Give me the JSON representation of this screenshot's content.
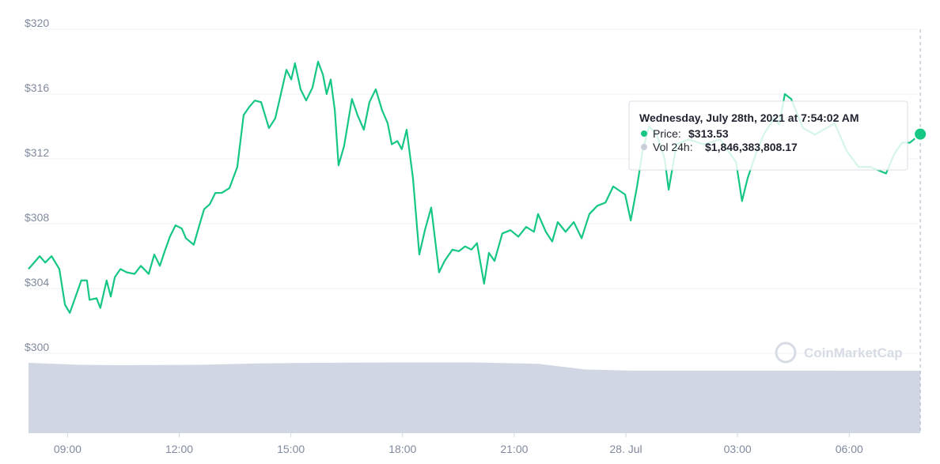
{
  "chart_data": {
    "type": "line",
    "xlim": [
      7.95,
      31.95
    ],
    "xticks": [
      {
        "value": 9,
        "label": "09:00"
      },
      {
        "value": 12,
        "label": "12:00"
      },
      {
        "value": 15,
        "label": "15:00"
      },
      {
        "value": 18,
        "label": "18:00"
      },
      {
        "value": 21,
        "label": "21:00"
      },
      {
        "value": 24,
        "label": "28. Jul"
      },
      {
        "value": 27,
        "label": "03:00"
      },
      {
        "value": 30,
        "label": "06:00"
      }
    ],
    "ylim": [
      300,
      320
    ],
    "yticks": [
      {
        "value": 300,
        "label": "$300"
      },
      {
        "value": 304,
        "label": "$304"
      },
      {
        "value": 308,
        "label": "$308"
      },
      {
        "value": 312,
        "label": "$312"
      },
      {
        "value": 316,
        "label": "$316"
      },
      {
        "value": 320,
        "label": "$320"
      }
    ],
    "y2lim": [
      0,
      2360000000
    ],
    "grid": true,
    "series": [
      {
        "color": "#16c784",
        "x": [
          7.95,
          8.14,
          8.25,
          8.4,
          8.57,
          8.78,
          8.93,
          9.06,
          9.2,
          9.37,
          9.52,
          9.59,
          9.78,
          9.88,
          10.05,
          10.16,
          10.27,
          10.42,
          10.59,
          10.8,
          10.97,
          11.18,
          11.33,
          11.48,
          11.61,
          11.75,
          11.9,
          12.07,
          12.18,
          12.39,
          12.54,
          12.67,
          12.82,
          12.97,
          13.14,
          13.35,
          13.56,
          13.73,
          13.88,
          14.03,
          14.2,
          14.41,
          14.58,
          14.73,
          14.88,
          15.01,
          15.11,
          15.26,
          15.41,
          15.58,
          15.73,
          15.86,
          15.96,
          16.07,
          16.18,
          16.28,
          16.43,
          16.64,
          16.79,
          16.96,
          17.11,
          17.28,
          17.45,
          17.6,
          17.71,
          17.86,
          17.98,
          18.11,
          18.28,
          18.45,
          18.6,
          18.77,
          18.98,
          19.13,
          19.34,
          19.51,
          19.68,
          19.85,
          20.0,
          20.19,
          20.32,
          20.47,
          20.68,
          20.9,
          21.11,
          21.32,
          21.53,
          21.64,
          21.85,
          22.02,
          22.17,
          22.38,
          22.6,
          22.81,
          23.02,
          23.23,
          23.45,
          23.66,
          23.98,
          24.13,
          24.3,
          24.45,
          24.62,
          24.83,
          25.04,
          25.15,
          25.36,
          25.68,
          26.1,
          26.53,
          26.96,
          27.12,
          27.27,
          27.49,
          27.7,
          27.98,
          28.12,
          28.27,
          28.44,
          28.76,
          29.08,
          29.61,
          29.93,
          30.25,
          30.57,
          30.78,
          30.99,
          31.21,
          31.42,
          31.63,
          31.91
        ],
        "values": [
          305.2,
          305.7,
          306.0,
          305.6,
          306.0,
          305.2,
          303.0,
          302.5,
          303.4,
          304.5,
          304.5,
          303.3,
          303.4,
          302.8,
          304.5,
          303.5,
          304.7,
          305.2,
          305.0,
          304.9,
          305.4,
          304.9,
          306.1,
          305.4,
          306.3,
          307.2,
          307.9,
          307.7,
          307.1,
          306.7,
          307.9,
          308.9,
          309.2,
          309.9,
          309.9,
          310.2,
          311.5,
          314.7,
          315.2,
          315.6,
          315.5,
          313.9,
          314.5,
          316.0,
          317.5,
          316.9,
          317.9,
          316.3,
          315.6,
          316.4,
          318.0,
          317.2,
          316.0,
          316.9,
          315.0,
          311.6,
          312.8,
          315.7,
          314.7,
          313.8,
          315.5,
          316.3,
          315.0,
          314.2,
          312.9,
          313.1,
          312.6,
          313.8,
          310.8,
          306.1,
          307.6,
          309.0,
          305.0,
          305.7,
          306.4,
          306.3,
          306.6,
          306.4,
          306.8,
          304.3,
          306.2,
          305.7,
          307.4,
          307.6,
          307.2,
          307.8,
          307.5,
          308.6,
          307.5,
          306.9,
          308.1,
          307.5,
          308.1,
          307.1,
          308.6,
          309.1,
          309.3,
          310.3,
          309.8,
          308.2,
          310.3,
          312.5,
          314.0,
          313.5,
          312.0,
          310.1,
          312.9,
          313.2,
          312.9,
          313.2,
          311.8,
          309.4,
          310.8,
          312.3,
          313.5,
          314.5,
          314.1,
          316.0,
          315.7,
          313.9,
          313.5,
          314.2,
          312.5,
          311.5,
          311.5,
          311.3,
          311.1,
          312.3,
          313.0,
          313.0,
          313.53
        ]
      },
      {
        "color": "#d1d6e4",
        "axis": "y2",
        "x": [
          7.95,
          9.31,
          10.37,
          12.5,
          13.99,
          15.69,
          17.81,
          19.94,
          21.64,
          22.92,
          24.19,
          28.44,
          31.91
        ],
        "values": [
          2080000000,
          2020000000,
          2010000000,
          2020000000,
          2060000000,
          2080000000,
          2090000000,
          2090000000,
          2050000000,
          1880000000,
          1850000000,
          1850000000,
          1846383808.17
        ]
      }
    ],
    "tooltip": {
      "date": "Wednesday, July 28th, 2021 at 7:54:02 AM",
      "price_label": "Price:",
      "price": "$313.53",
      "volume_label": "Vol 24h:",
      "volume": "$1,846,383,808.17"
    },
    "watermark": "CoinMarketCap"
  }
}
